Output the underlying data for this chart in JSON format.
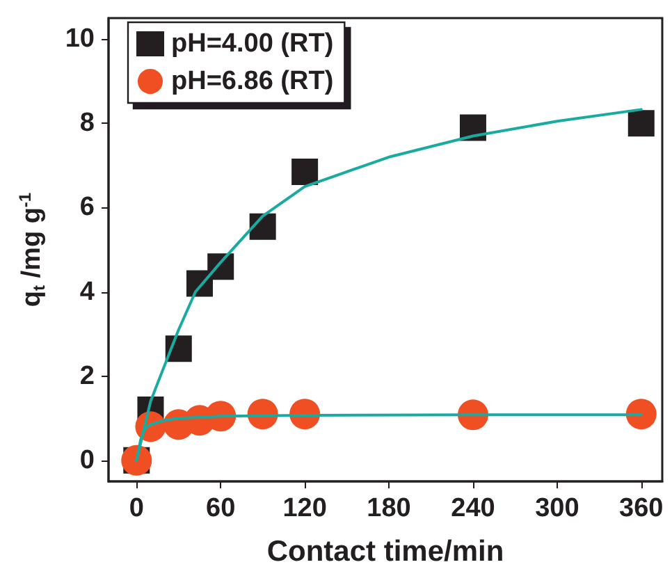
{
  "chart_data": {
    "type": "scatter",
    "xlabel": "Contact time/min",
    "ylabel": "q$_{t}$ /mg g$^{-1}$",
    "xlim": [
      -20,
      375
    ],
    "xticks": [
      0,
      60,
      120,
      180,
      240,
      300,
      360
    ],
    "ylim": [
      -0.5,
      10.5
    ],
    "yticks": [
      0,
      2,
      4,
      6,
      8,
      10
    ],
    "grid": false,
    "legend": "top left",
    "series": [
      {
        "name": "pH=4.00 (RT)",
        "marker": "square",
        "color": "#231f20",
        "x": [
          0,
          10,
          30,
          45,
          60,
          90,
          120,
          240,
          360
        ],
        "values": [
          0,
          1.2,
          2.65,
          4.2,
          4.6,
          5.55,
          6.85,
          7.9,
          8.0
        ]
      },
      {
        "name": "pH=6.86 (RT)",
        "marker": "circle",
        "color": "#f04e23",
        "x": [
          0,
          10,
          30,
          45,
          60,
          90,
          120,
          240,
          360
        ],
        "values": [
          0,
          0.8,
          0.85,
          0.95,
          1.05,
          1.1,
          1.1,
          1.08,
          1.1
        ]
      },
      {
        "type": "line",
        "marker": "none",
        "line_style": "solid",
        "color": "#1aaba0",
        "x": [
          0,
          5,
          10,
          17,
          30,
          42,
          60,
          90,
          120,
          180,
          240,
          300,
          360
        ],
        "values": [
          0,
          0.7,
          1.4,
          2.0,
          3.1,
          4.0,
          4.7,
          5.8,
          6.5,
          7.2,
          7.7,
          8.05,
          8.33
        ]
      },
      {
        "type": "line",
        "marker": "none",
        "line_style": "solid",
        "color": "#1aaba0",
        "x": [
          0,
          3,
          6,
          10,
          20,
          30,
          60,
          120,
          240,
          360
        ],
        "values": [
          0,
          0.5,
          0.75,
          0.85,
          0.95,
          1.0,
          1.05,
          1.07,
          1.08,
          1.08
        ]
      }
    ]
  }
}
